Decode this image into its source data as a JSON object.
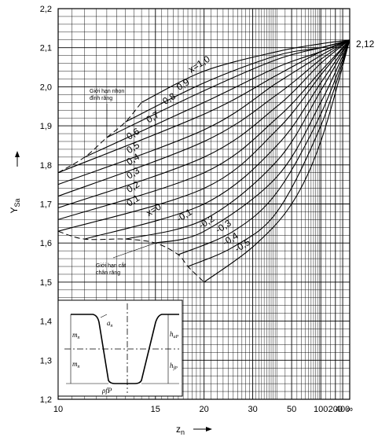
{
  "chart_data": {
    "type": "line",
    "title": "",
    "xlabel": "z",
    "xlabel_sub": "n",
    "ylabel": "Y",
    "ylabel_sub": "Sa",
    "xscale": "reciprocal",
    "xlim": [
      10,
      10000
    ],
    "ylim": [
      1.2,
      2.2
    ],
    "grid": true,
    "x_ticks": [
      {
        "v": 10,
        "label": "10"
      },
      {
        "v": 15,
        "label": "15"
      },
      {
        "v": 20,
        "label": "20"
      },
      {
        "v": 30,
        "label": "30"
      },
      {
        "v": 50,
        "label": "50"
      },
      {
        "v": 100,
        "label": "100"
      },
      {
        "v": 200,
        "label": "200"
      },
      {
        "v": 400,
        "label": "400"
      },
      {
        "v": 10000,
        "label": "∞"
      }
    ],
    "y_ticks": [
      "1,2",
      "1,3",
      "1,4",
      "1,5",
      "1,6",
      "1,7",
      "1,8",
      "1,9",
      "2,0",
      "2,1",
      "2,2"
    ],
    "y_tick_values": [
      1.2,
      1.3,
      1.4,
      1.5,
      1.6,
      1.7,
      1.8,
      1.9,
      2.0,
      2.1,
      2.2
    ],
    "converge_value": 2.12,
    "converge_label": "2,12",
    "series": [
      {
        "name": "x=1,0",
        "points": [
          [
            14,
            1.96
          ],
          [
            20,
            2.04
          ],
          [
            40,
            2.09
          ],
          [
            100,
            2.11
          ],
          [
            10000,
            2.12
          ]
        ]
      },
      {
        "name": "0,9",
        "points": [
          [
            13,
            1.91
          ],
          [
            20,
            2.01
          ],
          [
            40,
            2.08
          ],
          [
            100,
            2.1
          ],
          [
            10000,
            2.12
          ]
        ]
      },
      {
        "name": "0,8",
        "points": [
          [
            12,
            1.87
          ],
          [
            20,
            1.99
          ],
          [
            40,
            2.07
          ],
          [
            100,
            2.1
          ],
          [
            10000,
            2.12
          ]
        ]
      },
      {
        "name": "0,7",
        "points": [
          [
            11,
            1.82
          ],
          [
            20,
            1.96
          ],
          [
            40,
            2.05
          ],
          [
            100,
            2.09
          ],
          [
            10000,
            2.12
          ]
        ]
      },
      {
        "name": "0,6",
        "points": [
          [
            10,
            1.78
          ],
          [
            20,
            1.93
          ],
          [
            40,
            2.03
          ],
          [
            100,
            2.09
          ],
          [
            10000,
            2.12
          ]
        ]
      },
      {
        "name": "0,5",
        "points": [
          [
            10,
            1.75
          ],
          [
            20,
            1.89
          ],
          [
            40,
            2.01
          ],
          [
            100,
            2.08
          ],
          [
            10000,
            2.12
          ]
        ]
      },
      {
        "name": "0,4",
        "points": [
          [
            10,
            1.72
          ],
          [
            20,
            1.86
          ],
          [
            40,
            1.98
          ],
          [
            100,
            2.07
          ],
          [
            10000,
            2.12
          ]
        ]
      },
      {
        "name": "0,3",
        "points": [
          [
            10,
            1.69
          ],
          [
            20,
            1.82
          ],
          [
            40,
            1.95
          ],
          [
            100,
            2.06
          ],
          [
            10000,
            2.12
          ]
        ]
      },
      {
        "name": "0,2",
        "points": [
          [
            10,
            1.66
          ],
          [
            20,
            1.78
          ],
          [
            40,
            1.92
          ],
          [
            100,
            2.04
          ],
          [
            10000,
            2.12
          ]
        ]
      },
      {
        "name": "0,1",
        "points": [
          [
            10,
            1.63
          ],
          [
            20,
            1.74
          ],
          [
            40,
            1.89
          ],
          [
            100,
            2.03
          ],
          [
            10000,
            2.12
          ]
        ]
      },
      {
        "name": "x=0",
        "points": [
          [
            11,
            1.61
          ],
          [
            20,
            1.7
          ],
          [
            40,
            1.85
          ],
          [
            100,
            2.01
          ],
          [
            10000,
            2.12
          ]
        ]
      },
      {
        "name": "-0,1",
        "points": [
          [
            13,
            1.61
          ],
          [
            20,
            1.66
          ],
          [
            40,
            1.81
          ],
          [
            100,
            1.99
          ],
          [
            10000,
            2.12
          ]
        ]
      },
      {
        "name": "-0,2",
        "points": [
          [
            15,
            1.6
          ],
          [
            20,
            1.63
          ],
          [
            40,
            1.77
          ],
          [
            100,
            1.96
          ],
          [
            10000,
            2.12
          ]
        ]
      },
      {
        "name": "-0,3",
        "points": [
          [
            17,
            1.57
          ],
          [
            25,
            1.63
          ],
          [
            40,
            1.73
          ],
          [
            100,
            1.93
          ],
          [
            10000,
            2.12
          ]
        ]
      },
      {
        "name": "-0,4",
        "points": [
          [
            18,
            1.54
          ],
          [
            25,
            1.59
          ],
          [
            40,
            1.68
          ],
          [
            100,
            1.9
          ],
          [
            10000,
            2.12
          ]
        ]
      },
      {
        "name": "-0,5",
        "points": [
          [
            20,
            1.5
          ],
          [
            30,
            1.59
          ],
          [
            50,
            1.7
          ],
          [
            100,
            1.86
          ],
          [
            10000,
            2.12
          ]
        ]
      }
    ],
    "curve_labels": [
      "x=1,0",
      "0,9",
      "0,8",
      "0,7",
      "0,6",
      "0,5",
      "0,4",
      "0,3",
      "0,2",
      "0,1",
      "x=0",
      "-0,1",
      "-0,2",
      "-0,3",
      "-0,4",
      "-0,5"
    ],
    "limit_curves": [
      {
        "label_lines": [
          "Giới hạn nhọn",
          "đỉnh răng"
        ],
        "points": [
          [
            10,
            1.78
          ],
          [
            11,
            1.82
          ],
          [
            12,
            1.87
          ],
          [
            13,
            1.91
          ],
          [
            14,
            1.96
          ]
        ]
      },
      {
        "label_lines": [
          "Giới hạn cắt",
          "chân răng"
        ],
        "points": [
          [
            10,
            1.63
          ],
          [
            11,
            1.61
          ],
          [
            13,
            1.61
          ],
          [
            15,
            1.6
          ],
          [
            17,
            1.57
          ],
          [
            18,
            1.54
          ],
          [
            20,
            1.5
          ]
        ]
      }
    ],
    "inset_labels": {
      "mn_top": "m",
      "mn_bottom": "m",
      "mn_sub": "n",
      "an": "a",
      "an_sub": "n",
      "hap": "h",
      "hap_sub": "aP",
      "hfp": "h",
      "hfp_sub": "fP",
      "rhofp": "ρfP"
    }
  }
}
